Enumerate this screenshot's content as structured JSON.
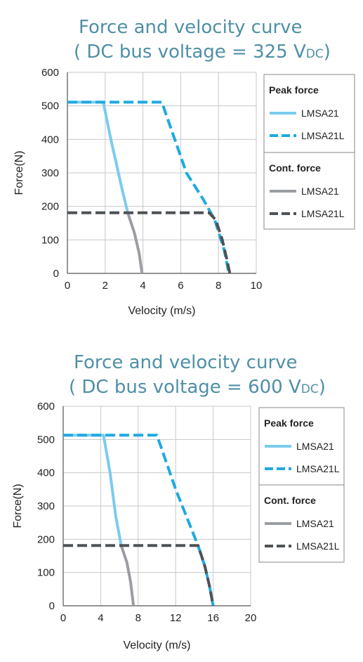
{
  "chart_data": [
    {
      "type": "line",
      "title": "Force and velocity curve",
      "subtitle_prefix": "( DC bus voltage = 325 V",
      "subtitle_unit": "DC",
      "subtitle_suffix": ")",
      "xlabel": "Velocity (m/s)",
      "ylabel": "Force(N)",
      "xlim": [
        0,
        10
      ],
      "ylim": [
        0,
        600
      ],
      "xticks": [
        0,
        2,
        4,
        6,
        8,
        10
      ],
      "yticks": [
        0,
        100,
        200,
        300,
        400,
        500,
        600
      ],
      "grid": true,
      "legend_position": "right",
      "legend_groups": [
        {
          "heading": "Peak force",
          "entries": [
            "LMSA21",
            "LMSA21L"
          ]
        },
        {
          "heading": "Cont. force",
          "entries": [
            "LMSA21",
            "LMSA21L"
          ]
        }
      ],
      "series": [
        {
          "name": "LMSA21",
          "group": "Peak force",
          "color": "#7ccbee",
          "dash": "solid",
          "points": [
            [
              0,
              511
            ],
            [
              1.9,
              511
            ],
            [
              2.3,
              400
            ],
            [
              2.9,
              250
            ],
            [
              3.2,
              180
            ]
          ]
        },
        {
          "name": "LMSA21L",
          "group": "Peak force",
          "color": "#1fa9e1",
          "dash": "dashed",
          "points": [
            [
              0,
              511
            ],
            [
              5.0,
              511
            ],
            [
              6.3,
              300
            ],
            [
              7.2,
              220
            ],
            [
              7.8,
              160
            ],
            [
              8.3,
              70
            ],
            [
              8.55,
              0
            ]
          ]
        },
        {
          "name": "LMSA21",
          "group": "Cont. force",
          "color": "#9a9ea3",
          "dash": "solid",
          "points": [
            [
              3.2,
              180
            ],
            [
              3.55,
              120
            ],
            [
              3.8,
              60
            ],
            [
              3.95,
              0
            ]
          ]
        },
        {
          "name": "LMSA21L",
          "group": "Cont. force",
          "color": "#4d5256",
          "dash": "dashed",
          "points": [
            [
              0,
              181
            ],
            [
              7.5,
              181
            ],
            [
              7.85,
              160
            ],
            [
              8.2,
              100
            ],
            [
              8.45,
              40
            ],
            [
              8.6,
              0
            ]
          ]
        }
      ]
    },
    {
      "type": "line",
      "title": "Force and velocity curve",
      "subtitle_prefix": "( DC bus voltage = 600 V",
      "subtitle_unit": "DC",
      "subtitle_suffix": ")",
      "xlabel": "Velocity (m/s)",
      "ylabel": "Force(N)",
      "xlim": [
        0,
        20
      ],
      "ylim": [
        0,
        600
      ],
      "xticks": [
        0,
        4,
        8,
        12,
        16,
        20
      ],
      "yticks": [
        0,
        100,
        200,
        300,
        400,
        500,
        600
      ],
      "grid": true,
      "legend_position": "right",
      "legend_groups": [
        {
          "heading": "Peak force",
          "entries": [
            "LMSA21",
            "LMSA21L"
          ]
        },
        {
          "heading": "Cont. force",
          "entries": [
            "LMSA21",
            "LMSA21L"
          ]
        }
      ],
      "series": [
        {
          "name": "LMSA21",
          "group": "Peak force",
          "color": "#7ccbee",
          "dash": "solid",
          "points": [
            [
              0,
              513
            ],
            [
              4.3,
              513
            ],
            [
              5.0,
              400
            ],
            [
              5.6,
              270
            ],
            [
              6.2,
              180
            ]
          ]
        },
        {
          "name": "LMSA21L",
          "group": "Peak force",
          "color": "#1fa9e1",
          "dash": "dashed",
          "points": [
            [
              0,
              513
            ],
            [
              10.0,
              513
            ],
            [
              12.0,
              350
            ],
            [
              14.4,
              180
            ],
            [
              15.1,
              120
            ],
            [
              15.6,
              60
            ],
            [
              16.0,
              0
            ]
          ]
        },
        {
          "name": "LMSA21",
          "group": "Cont. force",
          "color": "#9a9ea3",
          "dash": "solid",
          "points": [
            [
              6.2,
              180
            ],
            [
              6.8,
              130
            ],
            [
              7.2,
              70
            ],
            [
              7.5,
              0
            ]
          ]
        },
        {
          "name": "LMSA21L",
          "group": "Cont. force",
          "color": "#4d5256",
          "dash": "dashed",
          "points": [
            [
              0,
              181
            ],
            [
              14.4,
              181
            ],
            [
              15.1,
              120
            ],
            [
              15.6,
              60
            ],
            [
              16.0,
              0
            ]
          ]
        }
      ]
    }
  ]
}
